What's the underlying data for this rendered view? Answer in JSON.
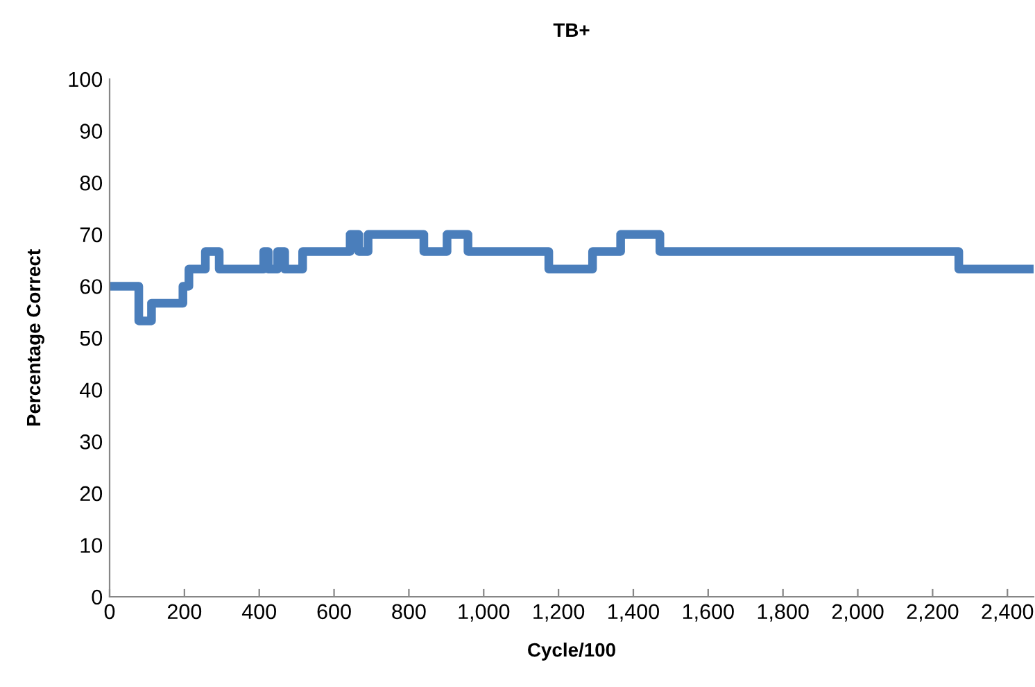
{
  "chart_data": {
    "type": "step",
    "title": "TB+",
    "xlabel": "Cycle/100",
    "ylabel": "Percentage Correct",
    "x": [
      0,
      78,
      112,
      196,
      212,
      256,
      293,
      412,
      424,
      449,
      468,
      516,
      643,
      666,
      691,
      840,
      902,
      958,
      1174,
      1291,
      1366,
      1471,
      2270,
      2470
    ],
    "series": [
      {
        "color": "#4a7ebb",
        "values": [
          60,
          53.3,
          56.7,
          60,
          63.3,
          66.7,
          63.3,
          66.7,
          63.3,
          66.7,
          63.3,
          66.7,
          70,
          66.7,
          70,
          66.7,
          70,
          66.7,
          63.3,
          66.7,
          70,
          66.7,
          63.3,
          63.3
        ]
      }
    ],
    "xlim": [
      0,
      2470
    ],
    "ylim": [
      0,
      100
    ],
    "xticks": [
      0,
      200,
      400,
      600,
      800,
      {
        "value": 1000,
        "label": "1,000"
      },
      {
        "value": 1200,
        "label": "1,200"
      },
      {
        "value": 1400,
        "label": "1,400"
      },
      {
        "value": 1600,
        "label": "1,600"
      },
      {
        "value": 1800,
        "label": "1,800"
      },
      {
        "value": 2000,
        "label": "2,000"
      },
      {
        "value": 2200,
        "label": "2,200"
      },
      {
        "value": 2400,
        "label": "2,400"
      }
    ],
    "yticks": [
      0,
      10,
      20,
      30,
      40,
      50,
      60,
      70,
      80,
      90,
      100
    ],
    "grid": false,
    "legend": false,
    "marker": "none",
    "line_style": "solid"
  }
}
